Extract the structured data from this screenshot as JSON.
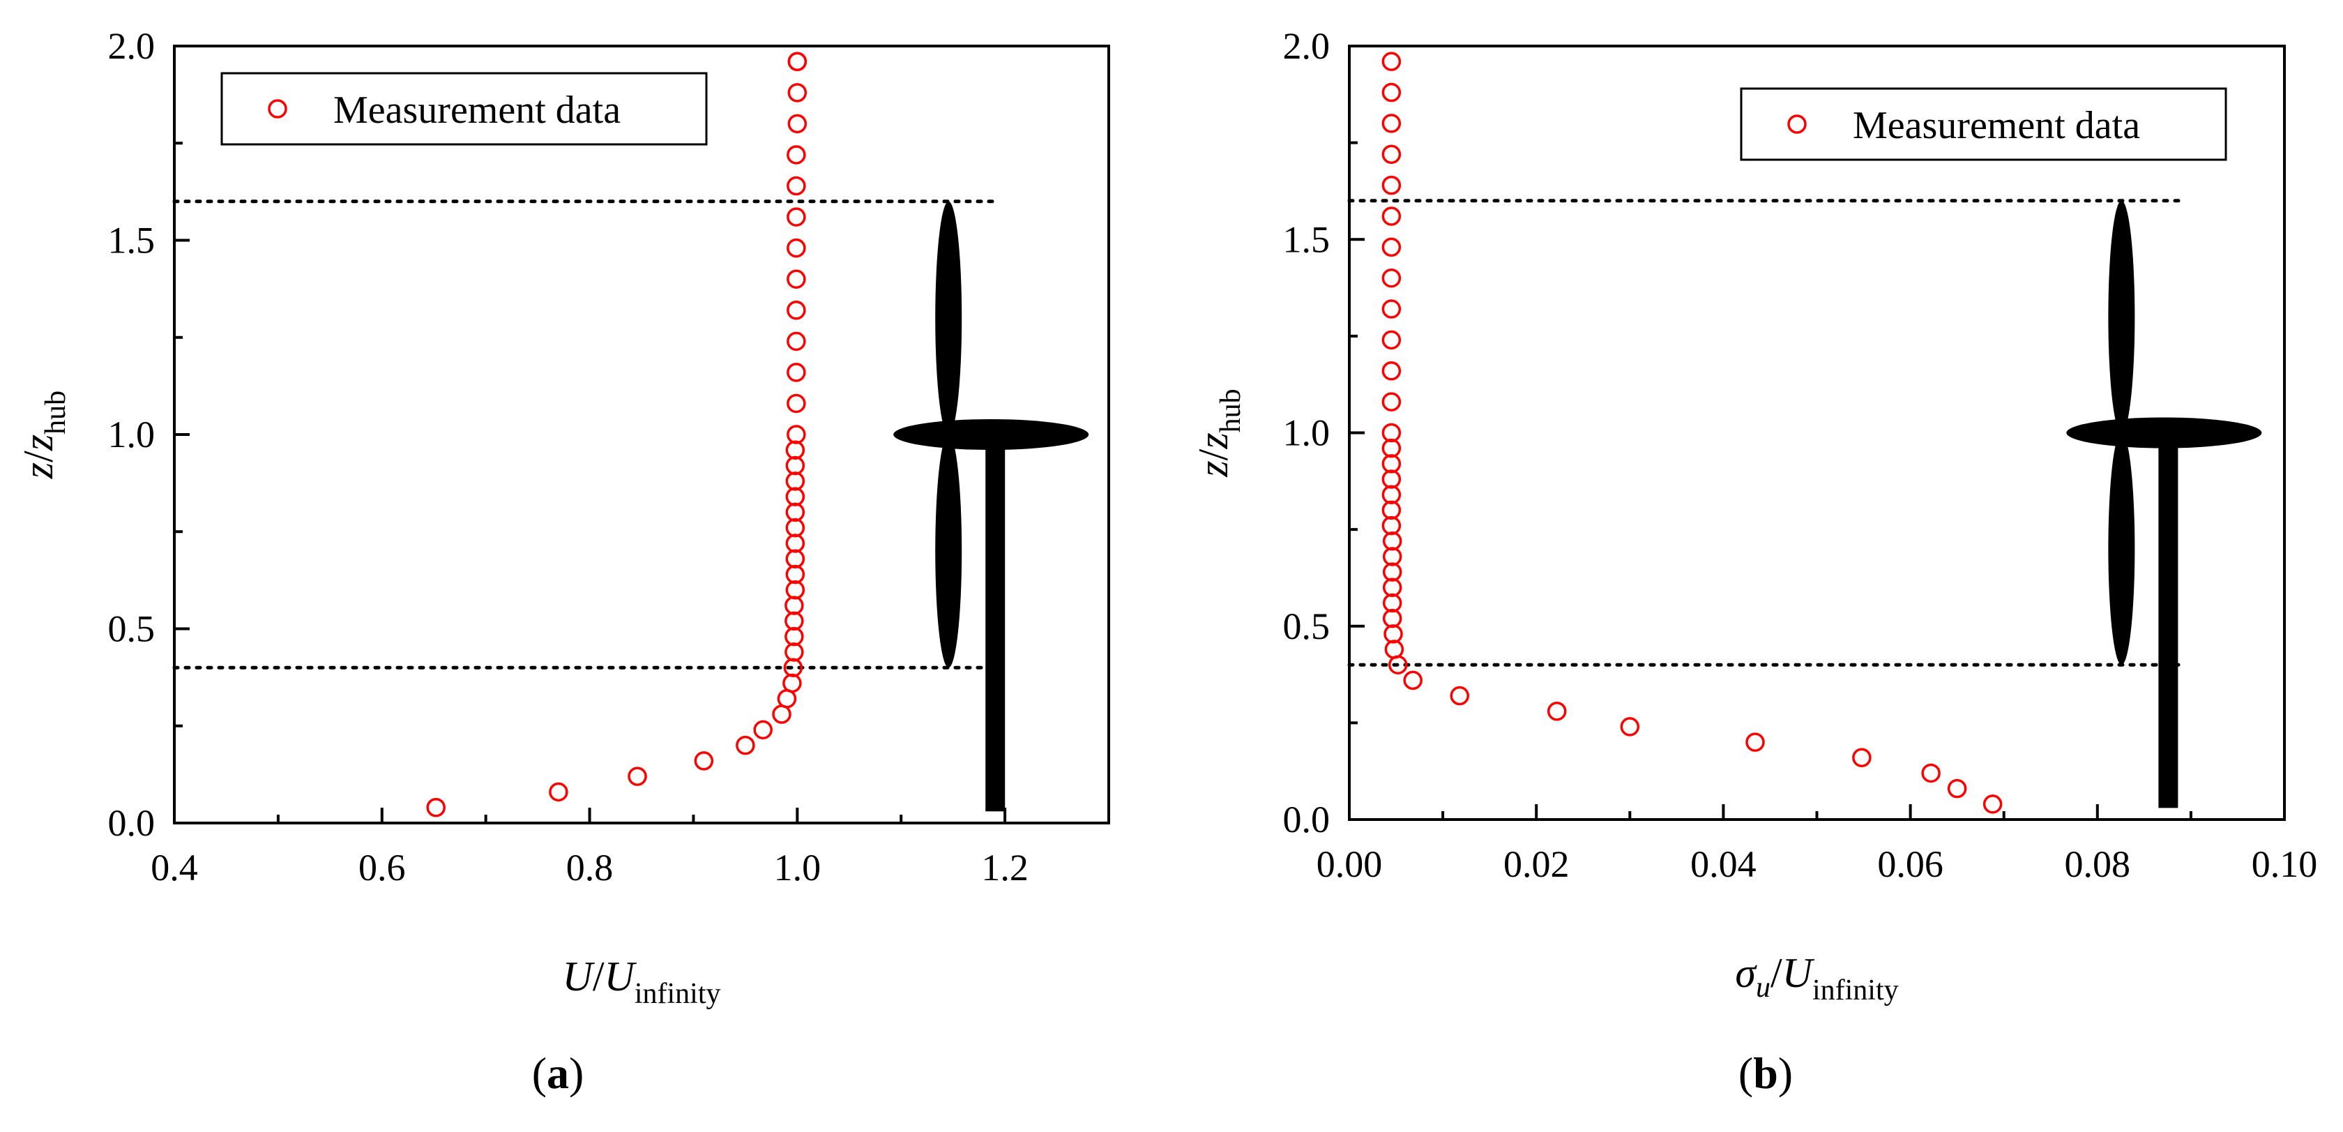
{
  "chart_data": [
    {
      "type": "scatter",
      "panel_label": "(a)",
      "panel_letter": "a",
      "xlabel": {
        "main": "U/U",
        "sub": "infinity",
        "italic": "U/U"
      },
      "ylabel": {
        "main": "z/z",
        "sub": "hub"
      },
      "xlim": [
        0.4,
        1.3
      ],
      "ylim": [
        0.0,
        2.0
      ],
      "xticks": [
        0.4,
        0.6,
        0.8,
        1.0,
        1.2
      ],
      "xtick_labels": [
        "0.4",
        "0.6",
        "0.8",
        "1.0",
        "1.2"
      ],
      "yticks": [
        0.0,
        0.5,
        1.0,
        1.5,
        2.0
      ],
      "ytick_labels": [
        "0.0",
        "0.5",
        "1.0",
        "1.5",
        "2.0"
      ],
      "legend": {
        "label": "Measurement data",
        "position": "top-left"
      },
      "reference_lines": [
        0.4,
        1.6
      ],
      "turbine": {
        "hub_x": 1.19,
        "hub_y": 1.0,
        "rotor_radius": 0.6,
        "base_y": 0.03
      },
      "series": [
        {
          "name": "Measurement data",
          "marker_color": "#ff0000",
          "x": [
            0.652,
            0.77,
            0.846,
            0.91,
            0.95,
            0.967,
            0.985,
            0.99,
            0.995,
            0.996,
            0.997,
            0.997,
            0.997,
            0.997,
            0.998,
            0.998,
            0.998,
            0.998,
            0.998,
            0.998,
            0.998,
            0.998,
            0.998,
            0.998,
            0.999,
            0.999,
            0.999,
            0.999,
            0.999,
            0.999,
            0.999,
            0.999,
            0.999,
            0.999,
            1.0,
            1.0,
            1.0,
            1.0
          ],
          "y": [
            0.04,
            0.08,
            0.12,
            0.16,
            0.2,
            0.24,
            0.28,
            0.32,
            0.36,
            0.4,
            0.44,
            0.48,
            0.52,
            0.56,
            0.6,
            0.64,
            0.68,
            0.72,
            0.76,
            0.8,
            0.84,
            0.88,
            0.92,
            0.96,
            1.0,
            1.08,
            1.16,
            1.24,
            1.32,
            1.4,
            1.48,
            1.56,
            1.64,
            1.72,
            1.8,
            1.88,
            1.96,
            1.96
          ]
        }
      ]
    },
    {
      "type": "scatter",
      "panel_label": "(b)",
      "panel_letter": "b",
      "xlabel": {
        "main": "σu/U",
        "sub": "infinity"
      },
      "ylabel": {
        "main": "z/z",
        "sub": "hub"
      },
      "xlim": [
        0.0,
        0.1
      ],
      "ylim": [
        0.0,
        2.0
      ],
      "xticks": [
        0.0,
        0.02,
        0.04,
        0.06,
        0.08,
        0.1
      ],
      "xtick_labels": [
        "0.00",
        "0.02",
        "0.04",
        "0.06",
        "0.08",
        "0.10"
      ],
      "yticks": [
        0.0,
        0.5,
        1.0,
        1.5,
        2.0
      ],
      "ytick_labels": [
        "0.0",
        "0.5",
        "1.0",
        "1.5",
        "2.0"
      ],
      "legend": {
        "label": "Measurement data",
        "position": "top-right"
      },
      "reference_lines": [
        0.4,
        1.6
      ],
      "turbine": {
        "hub_x": 0.0875,
        "hub_y": 1.0,
        "rotor_radius": 0.6,
        "base_y": 0.03
      },
      "series": [
        {
          "name": "Measurement data",
          "marker_color": "#ff0000",
          "x": [
            0.0688,
            0.065,
            0.0622,
            0.0548,
            0.0434,
            0.03,
            0.0222,
            0.0118,
            0.0068,
            0.0052,
            0.0048,
            0.0047,
            0.0046,
            0.0046,
            0.0046,
            0.0046,
            0.0046,
            0.0046,
            0.0045,
            0.0045,
            0.0045,
            0.0045,
            0.0045,
            0.0045,
            0.0045,
            0.0045,
            0.0045,
            0.0045,
            0.0045,
            0.0045,
            0.0045,
            0.0045,
            0.0045,
            0.0045,
            0.0045,
            0.0045,
            0.0045
          ],
          "y": [
            0.04,
            0.08,
            0.12,
            0.16,
            0.2,
            0.24,
            0.28,
            0.32,
            0.36,
            0.4,
            0.44,
            0.48,
            0.52,
            0.56,
            0.6,
            0.64,
            0.68,
            0.72,
            0.76,
            0.8,
            0.84,
            0.88,
            0.92,
            0.96,
            1.0,
            1.08,
            1.16,
            1.24,
            1.32,
            1.4,
            1.48,
            1.56,
            1.64,
            1.72,
            1.8,
            1.88,
            1.96
          ]
        }
      ]
    }
  ]
}
